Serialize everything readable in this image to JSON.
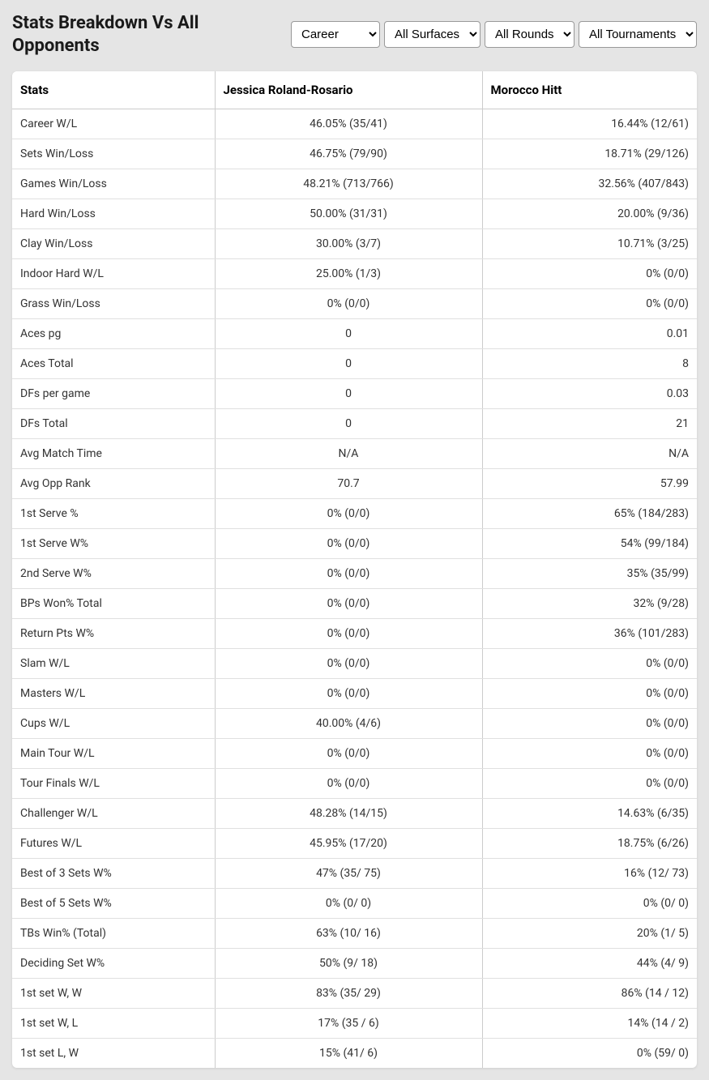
{
  "title": "Stats Breakdown Vs All Opponents",
  "filters": {
    "period": {
      "selected": "Career",
      "options": [
        "Career"
      ]
    },
    "surface": {
      "selected": "All Surfaces",
      "options": [
        "All Surfaces"
      ]
    },
    "round": {
      "selected": "All Rounds",
      "options": [
        "All Rounds"
      ]
    },
    "tournament": {
      "selected": "All Tournaments",
      "options": [
        "All Tournaments"
      ]
    }
  },
  "columns": [
    "Stats",
    "Jessica Roland-Rosario",
    "Morocco Hitt"
  ],
  "rows": [
    {
      "stat": "Career W/L",
      "p1": "46.05% (35/41)",
      "p2": "16.44% (12/61)"
    },
    {
      "stat": "Sets Win/Loss",
      "p1": "46.75% (79/90)",
      "p2": "18.71% (29/126)"
    },
    {
      "stat": "Games Win/Loss",
      "p1": "48.21% (713/766)",
      "p2": "32.56% (407/843)"
    },
    {
      "stat": "Hard Win/Loss",
      "p1": "50.00% (31/31)",
      "p2": "20.00% (9/36)"
    },
    {
      "stat": "Clay Win/Loss",
      "p1": "30.00% (3/7)",
      "p2": "10.71% (3/25)"
    },
    {
      "stat": "Indoor Hard W/L",
      "p1": "25.00% (1/3)",
      "p2": "0% (0/0)"
    },
    {
      "stat": "Grass Win/Loss",
      "p1": "0% (0/0)",
      "p2": "0% (0/0)"
    },
    {
      "stat": "Aces pg",
      "p1": "0",
      "p2": "0.01"
    },
    {
      "stat": "Aces Total",
      "p1": "0",
      "p2": "8"
    },
    {
      "stat": "DFs per game",
      "p1": "0",
      "p2": "0.03"
    },
    {
      "stat": "DFs Total",
      "p1": "0",
      "p2": "21"
    },
    {
      "stat": "Avg Match Time",
      "p1": "N/A",
      "p2": "N/A"
    },
    {
      "stat": "Avg Opp Rank",
      "p1": "70.7",
      "p2": "57.99"
    },
    {
      "stat": "1st Serve %",
      "p1": "0% (0/0)",
      "p2": "65% (184/283)"
    },
    {
      "stat": "1st Serve W%",
      "p1": "0% (0/0)",
      "p2": "54% (99/184)"
    },
    {
      "stat": "2nd Serve W%",
      "p1": "0% (0/0)",
      "p2": "35% (35/99)"
    },
    {
      "stat": "BPs Won% Total",
      "p1": "0% (0/0)",
      "p2": "32% (9/28)"
    },
    {
      "stat": "Return Pts W%",
      "p1": "0% (0/0)",
      "p2": "36% (101/283)"
    },
    {
      "stat": "Slam W/L",
      "p1": "0% (0/0)",
      "p2": "0% (0/0)"
    },
    {
      "stat": "Masters W/L",
      "p1": "0% (0/0)",
      "p2": "0% (0/0)"
    },
    {
      "stat": "Cups W/L",
      "p1": "40.00% (4/6)",
      "p2": "0% (0/0)"
    },
    {
      "stat": "Main Tour W/L",
      "p1": "0% (0/0)",
      "p2": "0% (0/0)"
    },
    {
      "stat": "Tour Finals W/L",
      "p1": "0% (0/0)",
      "p2": "0% (0/0)"
    },
    {
      "stat": "Challenger W/L",
      "p1": "48.28% (14/15)",
      "p2": "14.63% (6/35)"
    },
    {
      "stat": "Futures W/L",
      "p1": "45.95% (17/20)",
      "p2": "18.75% (6/26)"
    },
    {
      "stat": "Best of 3 Sets W%",
      "p1": "47% (35/ 75)",
      "p2": "16% (12/ 73)"
    },
    {
      "stat": "Best of 5 Sets W%",
      "p1": "0% (0/ 0)",
      "p2": "0% (0/ 0)"
    },
    {
      "stat": "TBs Win% (Total)",
      "p1": "63% (10/ 16)",
      "p2": "20% (1/ 5)"
    },
    {
      "stat": "Deciding Set W%",
      "p1": "50% (9/ 18)",
      "p2": "44% (4/ 9)"
    },
    {
      "stat": "1st set W, W",
      "p1": "83% (35/ 29)",
      "p2": "86% (14 / 12)"
    },
    {
      "stat": "1st set W, L",
      "p1": "17% (35 / 6)",
      "p2": "14% (14 / 2)"
    },
    {
      "stat": "1st set L, W",
      "p1": "15% (41/ 6)",
      "p2": "0% (59/ 0)"
    }
  ]
}
